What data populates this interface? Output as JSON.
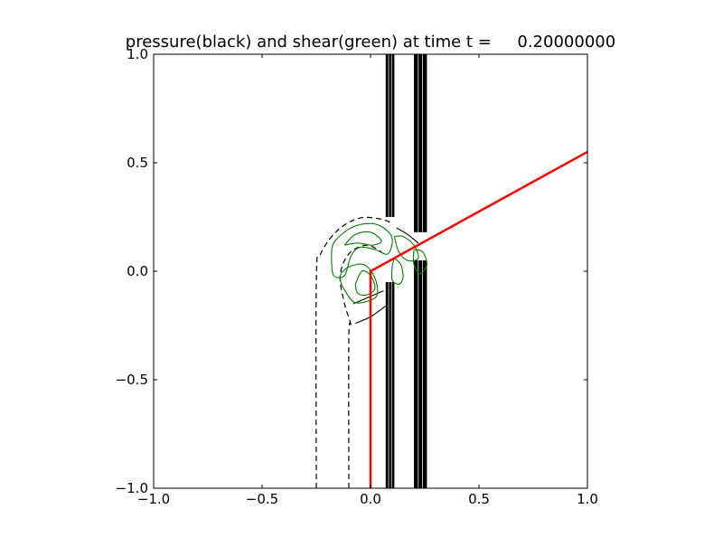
{
  "chart_data": {
    "type": "contour",
    "title": "pressure(black) and shear(green) at time t =     0.20000000",
    "xlabel": "",
    "ylabel": "",
    "xlim": [
      -1.0,
      1.0
    ],
    "ylim": [
      -1.0,
      1.0
    ],
    "xticks": [
      -1.0,
      -0.5,
      0.0,
      0.5,
      1.0
    ],
    "xtick_labels": [
      "−1.0",
      "−0.5",
      "0.0",
      "0.5",
      "1.0"
    ],
    "yticks": [
      -1.0,
      -0.5,
      0.0,
      0.5,
      1.0
    ],
    "ytick_labels": [
      "−1.0",
      "−0.5",
      "0.0",
      "0.5",
      "1.0"
    ],
    "grid": false,
    "colors": {
      "pressure": "#000000",
      "shear": "#008000",
      "interface": "#ff0000"
    },
    "interface_line": [
      [
        0.0,
        -1.0
      ],
      [
        0.0,
        0.0
      ],
      [
        1.0,
        0.55
      ]
    ],
    "pressure_bands": [
      {
        "x_left": 0.07,
        "x_right": 0.11,
        "y_min": -1.0,
        "y_max": 1.0,
        "lower_top": -0.05,
        "upper_bottom": 0.25
      },
      {
        "x_left": 0.2,
        "x_right": 0.26,
        "y_min": -1.0,
        "y_max": 1.0,
        "lower_top": 0.05,
        "upper_bottom": 0.18
      }
    ],
    "pressure_dashed_contours": [
      [
        [
          -0.25,
          -1.0
        ],
        [
          -0.25,
          -0.05
        ],
        [
          -0.23,
          0.08
        ],
        [
          -0.15,
          0.19
        ],
        [
          -0.05,
          0.245
        ],
        [
          0.05,
          0.24
        ],
        [
          0.1,
          0.22
        ]
      ],
      [
        [
          -0.1,
          -1.0
        ],
        [
          -0.1,
          -0.3
        ],
        [
          -0.09,
          -0.25
        ],
        [
          -0.12,
          -0.15
        ],
        [
          -0.14,
          -0.02
        ],
        [
          -0.1,
          0.08
        ],
        [
          -0.02,
          0.12
        ],
        [
          0.05,
          0.09
        ]
      ]
    ],
    "pressure_solid_contours": [
      [
        [
          -0.07,
          -0.24
        ],
        [
          0.0,
          -0.21
        ],
        [
          0.07,
          -0.16
        ]
      ],
      [
        [
          -0.08,
          -0.15
        ],
        [
          -0.01,
          -0.12
        ],
        [
          0.06,
          -0.09
        ]
      ],
      [
        [
          0.12,
          0.2
        ],
        [
          0.17,
          0.17
        ],
        [
          0.22,
          0.13
        ]
      ]
    ],
    "shear_contours": [
      [
        [
          -0.18,
          0.05
        ],
        [
          -0.17,
          0.13
        ],
        [
          -0.09,
          0.2
        ],
        [
          0.0,
          0.22
        ],
        [
          0.06,
          0.2
        ],
        [
          0.1,
          0.15
        ],
        [
          0.08,
          0.08
        ],
        [
          0.02,
          0.1
        ],
        [
          -0.05,
          0.11
        ],
        [
          -0.09,
          0.07
        ],
        [
          -0.12,
          -0.02
        ],
        [
          -0.17,
          -0.02
        ],
        [
          -0.18,
          0.05
        ]
      ],
      [
        [
          -0.12,
          0.12
        ],
        [
          -0.07,
          0.17
        ],
        [
          0.0,
          0.18
        ],
        [
          0.05,
          0.14
        ],
        [
          0.01,
          0.12
        ],
        [
          -0.06,
          0.13
        ],
        [
          -0.12,
          0.12
        ]
      ],
      [
        [
          -0.13,
          -0.07
        ],
        [
          -0.14,
          -0.02
        ],
        [
          -0.1,
          0.02
        ],
        [
          -0.03,
          0.03
        ],
        [
          0.02,
          -0.03
        ],
        [
          0.03,
          -0.11
        ],
        [
          -0.02,
          -0.14
        ],
        [
          -0.08,
          -0.14
        ],
        [
          -0.13,
          -0.07
        ]
      ],
      [
        [
          -0.07,
          -0.06
        ],
        [
          -0.04,
          0.0
        ],
        [
          0.0,
          -0.02
        ],
        [
          0.02,
          -0.08
        ],
        [
          -0.02,
          -0.11
        ],
        [
          -0.06,
          -0.1
        ],
        [
          -0.07,
          -0.06
        ]
      ],
      [
        [
          0.11,
          0.16
        ],
        [
          0.15,
          0.16
        ],
        [
          0.2,
          0.12
        ],
        [
          0.22,
          0.06
        ],
        [
          0.17,
          0.05
        ],
        [
          0.13,
          0.09
        ],
        [
          0.11,
          0.16
        ]
      ],
      [
        [
          0.11,
          0.06
        ],
        [
          0.14,
          0.03
        ],
        [
          0.15,
          -0.03
        ],
        [
          0.13,
          -0.06
        ],
        [
          0.1,
          -0.04
        ],
        [
          0.1,
          0.02
        ],
        [
          0.11,
          0.06
        ]
      ],
      [
        [
          0.2,
          0.1
        ],
        [
          0.24,
          0.09
        ],
        [
          0.26,
          0.03
        ],
        [
          0.23,
          -0.01
        ],
        [
          0.2,
          0.03
        ],
        [
          0.2,
          0.1
        ]
      ]
    ]
  }
}
